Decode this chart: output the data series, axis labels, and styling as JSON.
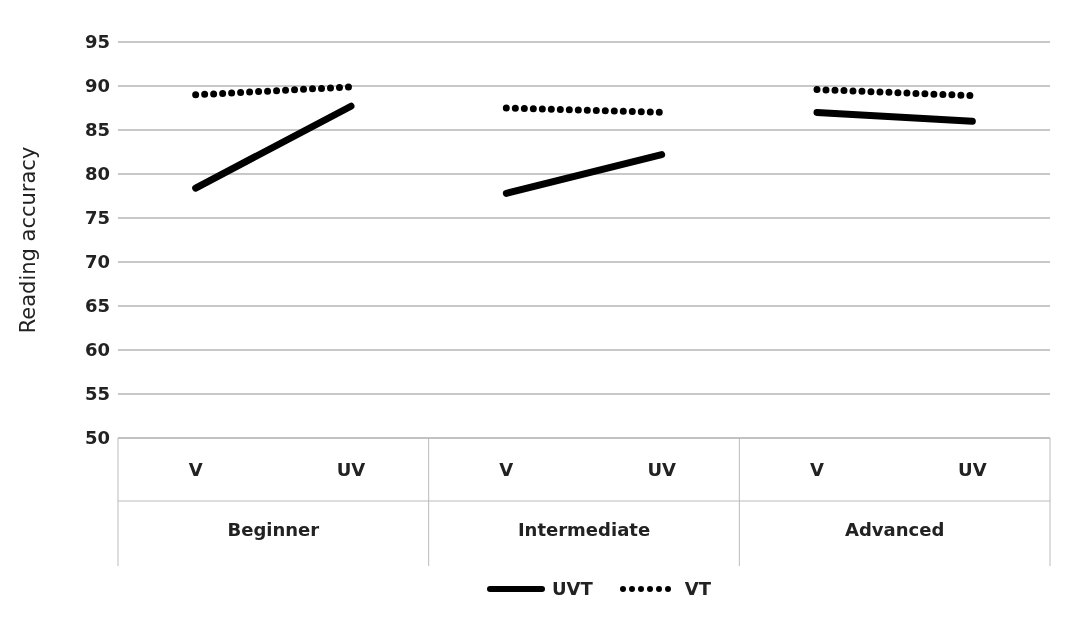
{
  "chart_data": {
    "type": "line",
    "ylabel": "Reading accuracy",
    "categories": [
      "V",
      "UV",
      "V",
      "UV",
      "V",
      "UV"
    ],
    "annotations": [
      "Beginner",
      "Intermediate",
      "Advanced"
    ],
    "series": [
      {
        "name": "UVT",
        "color": "#000000",
        "line_style": "solid",
        "values": [
          78.4,
          87.7,
          77.8,
          82.2,
          87.0,
          86.0
        ]
      },
      {
        "name": "VT",
        "color": "#000000",
        "line_style": "dotted",
        "values": [
          89.0,
          89.9,
          87.5,
          87.0,
          89.6,
          88.9
        ]
      }
    ],
    "ylim": [
      50,
      95
    ],
    "yticks": [
      50,
      55,
      60,
      65,
      70,
      75,
      80,
      85,
      90,
      95
    ],
    "grid": "y",
    "legend": "bottom",
    "marker": "none"
  }
}
